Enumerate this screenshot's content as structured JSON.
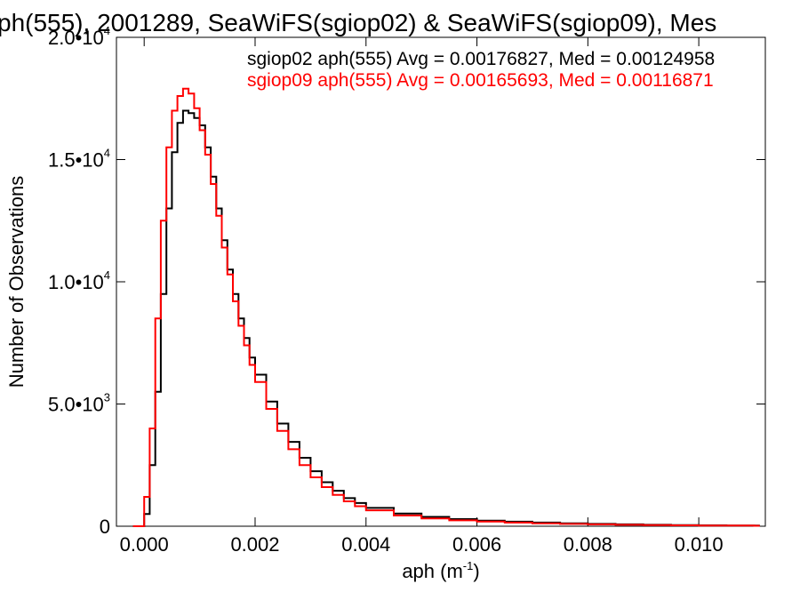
{
  "chart_data": {
    "type": "line",
    "title": "ph(555), 2001289, SeaWiFS(sgiop02) & SeaWiFS(sgiop09), Mes",
    "xlabel": "aph (m",
    "xlabel_sup": "-1",
    "xlabel_close": ")",
    "ylabel": "Number of Observations",
    "xlim": [
      -0.0005,
      0.0112
    ],
    "ylim": [
      0,
      20000
    ],
    "grid": false,
    "x_ticks": [
      {
        "value": 0.0,
        "label": "0.000"
      },
      {
        "value": 0.002,
        "label": "0.002"
      },
      {
        "value": 0.004,
        "label": "0.004"
      },
      {
        "value": 0.006,
        "label": "0.006"
      },
      {
        "value": 0.008,
        "label": "0.008"
      },
      {
        "value": 0.01,
        "label": "0.010"
      }
    ],
    "y_ticks": [
      {
        "value": 0,
        "mant": "0",
        "sup": ""
      },
      {
        "value": 5000,
        "mant": "5.0•10",
        "sup": "3"
      },
      {
        "value": 10000,
        "mant": "1.0•10",
        "sup": "4"
      },
      {
        "value": 15000,
        "mant": "1.5•10",
        "sup": "4"
      },
      {
        "value": 20000,
        "mant": "2.0•10",
        "sup": "4"
      }
    ],
    "legend_position": "top-right",
    "series": [
      {
        "name": "sgiop02 aph(555) Avg = 0.00176827, Med = 0.00124958",
        "color": "#000000",
        "x": [
          -0.0002,
          0.0,
          0.0001,
          0.0002,
          0.0003,
          0.0004,
          0.0005,
          0.0006,
          0.0007,
          0.0008,
          0.0009,
          0.001,
          0.0011,
          0.0012,
          0.0013,
          0.0014,
          0.0015,
          0.0016,
          0.0017,
          0.0018,
          0.0019,
          0.002,
          0.0022,
          0.0024,
          0.0026,
          0.0028,
          0.003,
          0.0032,
          0.0034,
          0.0036,
          0.0038,
          0.004,
          0.0045,
          0.005,
          0.0055,
          0.006,
          0.0065,
          0.007,
          0.0075,
          0.008,
          0.0085,
          0.009,
          0.0095,
          0.01,
          0.0105,
          0.011
        ],
        "y": [
          0,
          500,
          2500,
          5500,
          9500,
          13000,
          15300,
          16500,
          17000,
          16900,
          16700,
          16400,
          15500,
          14300,
          13000,
          11700,
          10500,
          9500,
          8500,
          7700,
          6900,
          6200,
          5100,
          4200,
          3450,
          2800,
          2250,
          1800,
          1450,
          1150,
          950,
          750,
          520,
          380,
          290,
          230,
          185,
          150,
          120,
          95,
          75,
          60,
          48,
          38,
          30,
          25
        ]
      },
      {
        "name": "sgiop09 aph(555) Avg = 0.00165693, Med = 0.00116871",
        "color": "#ff0000",
        "x": [
          -0.0002,
          0.0,
          0.0001,
          0.0002,
          0.0003,
          0.0004,
          0.0005,
          0.0006,
          0.0007,
          0.0008,
          0.0009,
          0.001,
          0.0011,
          0.0012,
          0.0013,
          0.0014,
          0.0015,
          0.0016,
          0.0017,
          0.0018,
          0.0019,
          0.002,
          0.0022,
          0.0024,
          0.0026,
          0.0028,
          0.003,
          0.0032,
          0.0034,
          0.0036,
          0.0038,
          0.004,
          0.0045,
          0.005,
          0.0055,
          0.006,
          0.0065,
          0.007,
          0.0075,
          0.008,
          0.0085,
          0.009,
          0.0095,
          0.01,
          0.0105,
          0.011
        ],
        "y": [
          0,
          1200,
          4000,
          8500,
          12500,
          15500,
          17000,
          17600,
          17900,
          17700,
          17100,
          16200,
          15200,
          14000,
          12700,
          11400,
          10300,
          9200,
          8200,
          7400,
          6600,
          5900,
          4800,
          3900,
          3150,
          2500,
          2000,
          1600,
          1280,
          1020,
          820,
          650,
          440,
          320,
          240,
          190,
          150,
          120,
          95,
          75,
          60,
          48,
          38,
          30,
          25,
          20
        ]
      }
    ]
  }
}
